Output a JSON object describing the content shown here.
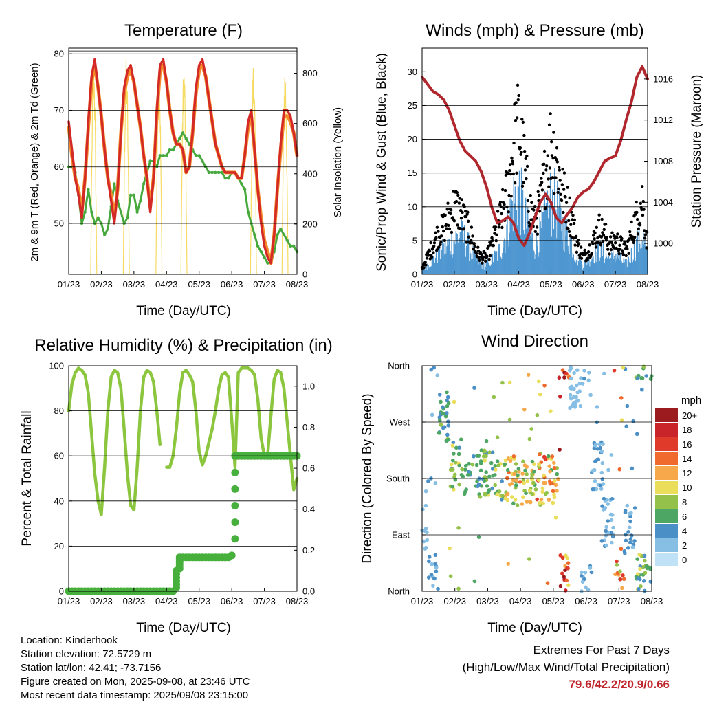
{
  "x_ticks": [
    "01/23",
    "02/23",
    "03/23",
    "04/23",
    "05/23",
    "06/23",
    "07/23",
    "08/23"
  ],
  "colors": {
    "temp_red": "#d42a27",
    "temp_orange": "#f48a2a",
    "dew_green": "#47a93d",
    "insolation": "#f5d547",
    "sonic_blue": "#4e97d1",
    "gust_black": "#000000",
    "pressure": "#b0272d",
    "rh_green": "#8cc63f",
    "precip_green": "#47b03d"
  },
  "chart_data": [
    {
      "type": "line",
      "title": "Temperature (F)",
      "xlabel": "Time (Day/UTC)",
      "ylabel": "2m & 9m T (Red, Orange) & 2m Td (Green)",
      "y2label": "Solar Insolation (Yellow)",
      "ylim": [
        41,
        81
      ],
      "y2lim": [
        0,
        900
      ],
      "yticks": [
        50,
        60,
        70,
        80
      ],
      "y2ticks": [
        0,
        200,
        400,
        600,
        800
      ],
      "x": [
        0,
        0.3,
        0.6,
        0.9,
        1.2,
        1.5,
        1.8,
        2.1,
        2.4,
        2.7,
        3.0,
        3.3,
        3.6,
        3.9,
        4.2,
        4.5,
        4.8,
        5.1,
        5.4,
        5.7,
        6.0,
        6.3,
        6.6,
        6.9,
        7.2,
        7.5,
        7.8,
        8.1,
        8.4,
        8.7,
        9.0,
        9.3,
        9.6,
        9.9,
        10.2,
        10.5,
        10.8,
        11.1,
        11.4,
        11.7,
        12.0,
        12.3,
        12.6,
        12.9,
        13.2,
        13.5,
        13.8,
        14.1,
        14.4,
        14.7,
        15.0,
        15.3,
        15.6,
        15.9,
        16.2,
        16.5,
        16.8,
        17.1,
        17.4,
        17.7,
        18.0,
        18.3,
        18.6,
        18.9,
        19.2,
        19.5,
        19.8,
        20.1,
        20.4,
        20.7,
        21.0
      ],
      "series": [
        {
          "name": "2m T",
          "values": [
            68,
            63,
            58,
            55,
            51,
            58,
            68,
            76,
            79,
            74,
            69,
            63,
            58,
            54,
            50,
            56,
            66,
            74,
            77,
            78,
            75,
            71,
            67,
            62,
            58,
            52,
            58,
            70,
            78,
            79,
            75,
            70,
            66,
            64,
            64,
            63,
            59,
            60,
            66,
            74,
            78,
            79,
            76,
            72,
            68,
            64,
            62,
            60,
            59,
            59,
            59,
            59,
            58,
            58,
            62,
            68,
            70,
            63,
            56,
            50,
            46,
            44,
            43,
            48,
            56,
            64,
            70,
            70,
            69,
            66,
            62
          ]
        },
        {
          "name": "9m T",
          "values": [
            67,
            62,
            58,
            56,
            52,
            58,
            67,
            75,
            78,
            74,
            69,
            63,
            58,
            55,
            51,
            56,
            66,
            73,
            76,
            77,
            75,
            71,
            67,
            62,
            58,
            53,
            58,
            69,
            77,
            78,
            75,
            70,
            66,
            64,
            64,
            63,
            59,
            60,
            66,
            73,
            77,
            78,
            76,
            72,
            68,
            64,
            62,
            60,
            59,
            59,
            59,
            59,
            58,
            58,
            62,
            67,
            69,
            63,
            56,
            51,
            47,
            45,
            43,
            48,
            56,
            63,
            69,
            69,
            68,
            66,
            62
          ]
        },
        {
          "name": "2m Td",
          "values": [
            60,
            60,
            59,
            55,
            50,
            52,
            56,
            52,
            50,
            51,
            50,
            48,
            49,
            53,
            57,
            54,
            52,
            50,
            51,
            55,
            55,
            52,
            54,
            57,
            59,
            61,
            61,
            60,
            62,
            62,
            62,
            63,
            63,
            64,
            65,
            66,
            65,
            64,
            63,
            62,
            62,
            61,
            60,
            59,
            59,
            59,
            59,
            59,
            58,
            58,
            59,
            59,
            58,
            57,
            56,
            52,
            50,
            48,
            46,
            45,
            44,
            43,
            43,
            45,
            48,
            49,
            48,
            47,
            46,
            46,
            45
          ]
        }
      ],
      "insolation": {
        "day_centers": [
          2.3,
          5.3,
          8.3,
          10.6,
          17.0,
          19.9
        ],
        "peaks": [
          880,
          870,
          880,
          860,
          870,
          860
        ]
      }
    },
    {
      "type": "scatter",
      "title": "Winds (mph) & Pressure (mb)",
      "xlabel": "Time (Day/UTC)",
      "ylabel": "Sonic/Prop Wind & Gust (Blue, Black)",
      "y2label": "Station Pressure (Maroon)",
      "ylim": [
        0,
        33.5
      ],
      "y2lim": [
        997,
        1019
      ],
      "yticks": [
        0,
        5,
        10,
        15,
        20,
        25,
        30
      ],
      "y2ticks": [
        1000,
        1004,
        1008,
        1012,
        1016
      ],
      "x": [
        0,
        0.5,
        1.0,
        1.5,
        2.0,
        2.5,
        3.0,
        3.5,
        4.0,
        4.5,
        5.0,
        5.5,
        6.0,
        6.5,
        7.0,
        7.5,
        8.0,
        8.5,
        9.0,
        9.5,
        10.0,
        10.5,
        11.0,
        11.5,
        12.0,
        12.5,
        13.0,
        13.5,
        14.0,
        14.5,
        15.0,
        15.5,
        16.0,
        16.5,
        17.0,
        17.5,
        18.0,
        18.5,
        19.0,
        19.5,
        20.0,
        20.5,
        21.0
      ],
      "series": [
        {
          "name": "Sonic/Prop Wind",
          "values": [
            1,
            2,
            3,
            4,
            5,
            6,
            7,
            8,
            7,
            5,
            3,
            2,
            2,
            3,
            4,
            6,
            10,
            15,
            17,
            12,
            8,
            6,
            8,
            12,
            15,
            14,
            10,
            8,
            6,
            3,
            2,
            3,
            4,
            5,
            4,
            3,
            4,
            3,
            2,
            4,
            6,
            8,
            3
          ]
        },
        {
          "name": "Gust",
          "values": [
            1,
            3,
            5,
            7,
            8,
            10,
            12,
            11,
            9,
            7,
            4,
            3,
            3,
            5,
            8,
            11,
            15,
            22,
            26,
            19,
            12,
            9,
            12,
            18,
            23,
            20,
            15,
            12,
            9,
            5,
            3,
            4,
            6,
            8,
            7,
            5,
            6,
            5,
            4,
            7,
            10,
            13,
            5
          ]
        },
        {
          "name": "Station Pressure",
          "values": [
            1016.2,
            1015.5,
            1014.8,
            1014.5,
            1014,
            1013,
            1011.5,
            1010,
            1009,
            1008.5,
            1008,
            1007,
            1005.5,
            1003.5,
            1002,
            1002.2,
            1002.6,
            1002,
            1000.5,
            999.8,
            1001,
            1002.5,
            1004,
            1004.8,
            1004,
            1002.5,
            1002,
            1002.8,
            1003.5,
            1004.5,
            1005,
            1005.3,
            1006,
            1007,
            1008,
            1008.3,
            1008.5,
            1010,
            1012,
            1013.8,
            1016.2,
            1017.2,
            1016
          ]
        }
      ]
    },
    {
      "type": "line",
      "title": "Relative Humidity (%) & Precipitation (in)",
      "xlabel": "Time (Day/UTC)",
      "ylabel": "Percent & Total Rainfall",
      "ylim": [
        0,
        100
      ],
      "y2lim": [
        0,
        1.1
      ],
      "yticks": [
        0,
        20,
        40,
        60,
        80,
        100
      ],
      "y2ticks": [
        0.0,
        0.2,
        0.4,
        0.6,
        0.8,
        1.0
      ],
      "x": [
        0,
        0.3,
        0.6,
        0.9,
        1.2,
        1.5,
        1.8,
        2.1,
        2.4,
        2.7,
        3.0,
        3.3,
        3.6,
        3.9,
        4.2,
        4.5,
        4.8,
        5.1,
        5.4,
        5.7,
        6.0,
        6.3,
        6.6,
        6.9,
        7.2,
        7.5,
        7.8,
        8.1,
        8.4,
        8.7,
        9.0,
        9.3,
        9.6,
        9.9,
        10.2,
        10.5,
        10.8,
        11.1,
        11.4,
        11.7,
        12.0,
        12.3,
        12.6,
        12.9,
        13.2,
        13.5,
        13.8,
        14.1,
        14.4,
        14.7,
        15.0,
        15.3,
        15.6,
        15.9,
        16.2,
        16.5,
        16.8,
        17.1,
        17.4,
        17.7,
        18.0,
        18.3,
        18.6,
        18.9,
        19.2,
        19.5,
        19.8,
        20.1,
        20.4,
        20.7,
        21.0
      ],
      "series": [
        {
          "name": "Relative Humidity",
          "values": [
            80,
            92,
            97,
            99,
            98,
            96,
            88,
            70,
            52,
            40,
            34,
            55,
            80,
            95,
            98,
            97,
            90,
            72,
            52,
            38,
            36,
            55,
            80,
            95,
            98,
            97,
            93,
            80,
            65,
            null,
            55,
            55,
            60,
            72,
            88,
            97,
            98,
            96,
            93,
            80,
            62,
            56,
            60,
            66,
            72,
            80,
            90,
            96,
            97,
            95,
            76,
            55,
            97,
            99,
            99,
            99,
            98,
            96,
            85,
            68,
            60,
            60,
            78,
            94,
            98,
            97,
            90,
            75,
            60,
            45,
            50
          ]
        },
        {
          "name": "Total Rainfall",
          "values": [
            0,
            0,
            0,
            0,
            0,
            0,
            0,
            0,
            0,
            0,
            0,
            0,
            0,
            0,
            0,
            0,
            0,
            0,
            0,
            0,
            0,
            0,
            0,
            0,
            0,
            0,
            0,
            0,
            0,
            0,
            0,
            0,
            0,
            0.1,
            0.165,
            0.165,
            0.165,
            0.165,
            0.165,
            0.165,
            0.165,
            0.165,
            0.165,
            0.165,
            0.165,
            0.165,
            0.165,
            0.165,
            0.165,
            0.165,
            0.175,
            0.66,
            0.66,
            0.66,
            0.66,
            0.66,
            0.66,
            0.66,
            0.66,
            0.66,
            0.66,
            0.66,
            0.66,
            0.66,
            0.66,
            0.66,
            0.66,
            0.66,
            0.66,
            0.66,
            0.66
          ]
        }
      ]
    },
    {
      "type": "scatter",
      "title": "Wind Direction",
      "xlabel": "Time (Day/UTC)",
      "ylabel": "Direction (Colored By Speed)",
      "ytick_labels": [
        "North",
        "East",
        "South",
        "West",
        "North"
      ],
      "legend_title": "mph",
      "legend_labels": [
        "20+",
        "18",
        "16",
        "14",
        "12",
        "10",
        "8",
        "6",
        "4",
        "2",
        "0"
      ],
      "legend_colors": [
        "#9b1b1f",
        "#c8242a",
        "#e03a2a",
        "#ef6a2c",
        "#f6a84a",
        "#e9dd59",
        "#93c14a",
        "#4ea664",
        "#4a8fc6",
        "#86bee4",
        "#bfe2f6"
      ],
      "direction_by_day": {
        "day": [
          0,
          1,
          2,
          3,
          4,
          5,
          6,
          7,
          8,
          9,
          10,
          11,
          12,
          13,
          14,
          15,
          16,
          17,
          18,
          19,
          20,
          21
        ],
        "direction_deg": [
          100,
          20,
          280,
          200,
          190,
          190,
          185,
          180,
          180,
          170,
          180,
          180,
          180,
          20,
          330,
          10,
          200,
          110,
          30,
          100,
          20,
          10
        ],
        "speed_mph": [
          2,
          4,
          6,
          8,
          6,
          6,
          8,
          9,
          12,
          11,
          10,
          14,
          13,
          18,
          2,
          3,
          4,
          3,
          13,
          4,
          8,
          7
        ]
      }
    }
  ],
  "info": {
    "location": "Location: Kinderhook",
    "elevation": "Station elevation: 72.5729 m",
    "latlon": "Station lat/lon: 42.41; -73.7156",
    "created": "Figure created on Mon, 2025-09-08, at 23:46 UTC",
    "recent": "Most recent data timestamp: 2025/09/08 23:15:00"
  },
  "extremes": {
    "line1": "Extremes For Past 7 Days",
    "line2": "(High/Low/Max Wind/Total Precipitation)",
    "values": "79.6/42.2/20.9/0.66"
  }
}
